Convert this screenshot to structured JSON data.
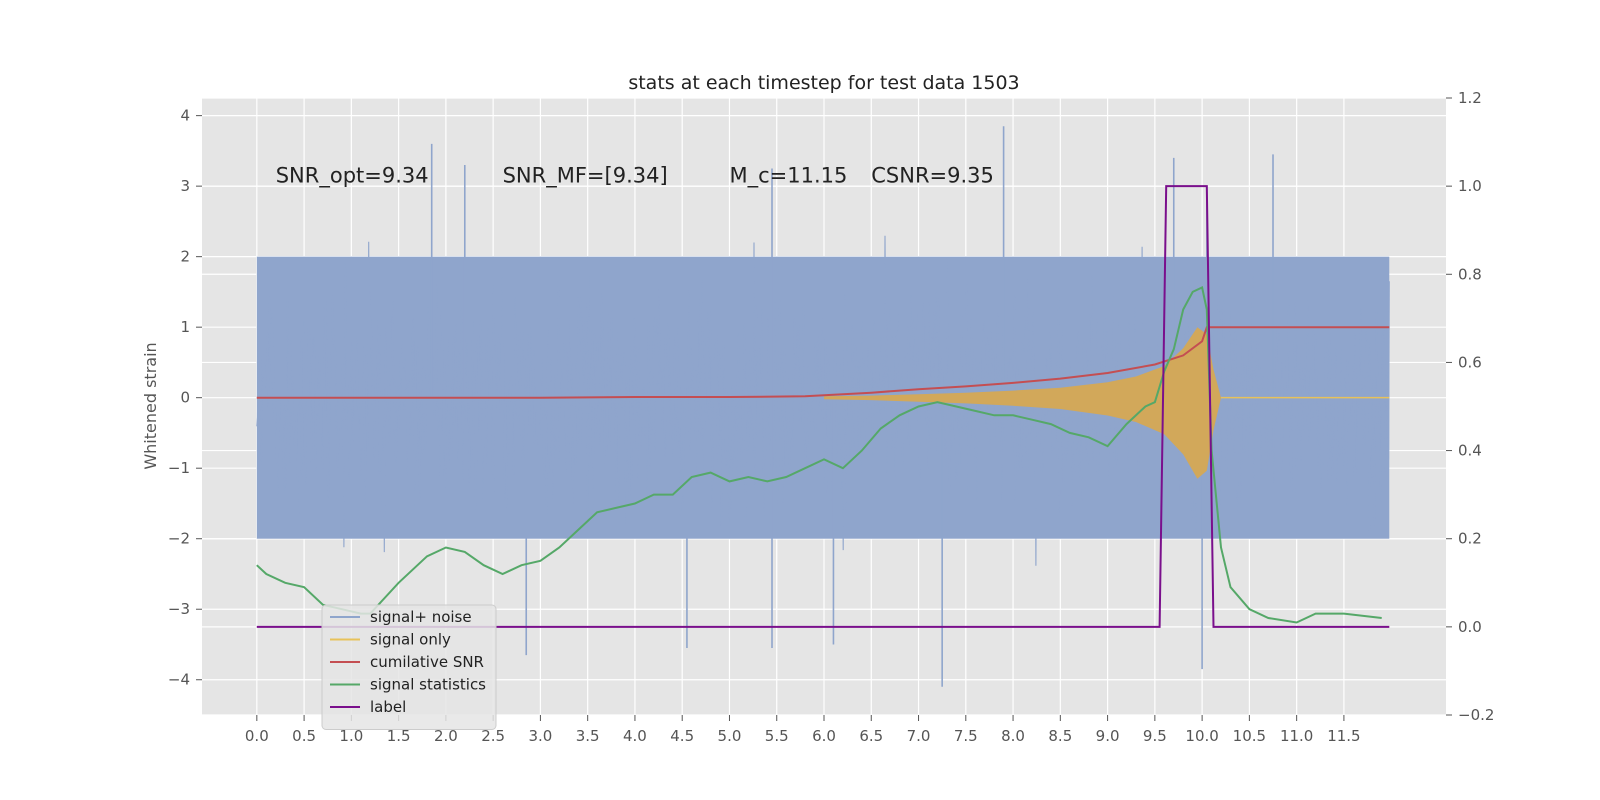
{
  "chart_data": {
    "type": "line",
    "title": "stats at each timestep for test data 1503",
    "ylabel": "Whitened strain",
    "y2label": "",
    "xlim": [
      -0.58,
      12.58
    ],
    "ylim": [
      -4.5,
      4.25
    ],
    "y2lim": [
      -0.2,
      1.2
    ],
    "x_ticks": [
      0.0,
      0.5,
      1.0,
      1.5,
      2.0,
      2.5,
      3.0,
      3.5,
      4.0,
      4.5,
      5.0,
      5.5,
      6.0,
      6.5,
      7.0,
      7.5,
      8.0,
      8.5,
      9.0,
      9.5,
      10.0,
      10.5,
      11.0,
      11.5
    ],
    "x_tick_labels": [
      "0.0",
      "0.5",
      "1.0",
      "1.5",
      "2.0",
      "2.5",
      "3.0",
      "3.5",
      "4.0",
      "4.5",
      "5.0",
      "5.5",
      "6.0",
      "6.5",
      "7.0",
      "7.5",
      "8.0",
      "8.5",
      "9.0",
      "9.5",
      "10.0",
      "10.5",
      "11.0",
      "11.5"
    ],
    "y_ticks": [
      -4,
      -3,
      -2,
      -1,
      0,
      1,
      2,
      3,
      4
    ],
    "y_tick_labels": [
      "−4",
      "−3",
      "−2",
      "−1",
      "0",
      "1",
      "2",
      "3",
      "4"
    ],
    "y2_ticks": [
      -0.2,
      0.0,
      0.2,
      0.4,
      0.6,
      0.8,
      1.0,
      1.2
    ],
    "y2_tick_labels": [
      "−0.2",
      "0.0",
      "0.2",
      "0.4",
      "0.6",
      "0.8",
      "1.0",
      "1.2"
    ],
    "grid": true,
    "legend_position": "lower-left",
    "annotations": [
      {
        "text": "SNR_opt=9.34",
        "x": 0.2,
        "y": 3.05
      },
      {
        "text": "SNR_MF=[9.34]",
        "x": 2.6,
        "y": 3.05
      },
      {
        "text": "M_c=11.15",
        "x": 5.0,
        "y": 3.05
      },
      {
        "text": "CSNR=9.35",
        "x": 6.5,
        "y": 3.05
      }
    ],
    "series": [
      {
        "name": "signal+ noise",
        "color": "#8fa5cc",
        "axis": "left",
        "kind": "noise",
        "x_range": [
          0.0,
          11.98
        ],
        "band_low": -2.0,
        "band_high": 2.0,
        "peaks_high": [
          [
            1.85,
            3.6
          ],
          [
            2.2,
            3.3
          ],
          [
            5.45,
            3.25
          ],
          [
            7.9,
            3.85
          ],
          [
            10.75,
            3.45
          ],
          [
            9.7,
            3.4
          ],
          [
            10.05,
            3.0
          ]
        ],
        "peaks_low": [
          [
            2.85,
            -3.65
          ],
          [
            4.55,
            -3.55
          ],
          [
            5.45,
            -3.55
          ],
          [
            7.25,
            -4.1
          ],
          [
            10.0,
            -3.85
          ],
          [
            6.1,
            -3.5
          ]
        ]
      },
      {
        "name": "signal only",
        "color": "#e8c25a",
        "axis": "left",
        "kind": "chirp",
        "x": [
          6.0,
          6.5,
          7.0,
          7.5,
          8.0,
          8.5,
          9.0,
          9.3,
          9.6,
          9.8,
          9.95,
          10.05,
          10.12,
          10.2,
          11.98
        ],
        "envelope": [
          0.02,
          0.03,
          0.05,
          0.07,
          0.1,
          0.14,
          0.22,
          0.3,
          0.45,
          0.7,
          1.0,
          0.9,
          0.4,
          0.0,
          0.0
        ]
      },
      {
        "name": "cumilative SNR",
        "color": "#c44e52",
        "axis": "left",
        "x": [
          0.0,
          1.0,
          2.0,
          3.0,
          4.0,
          5.0,
          5.8,
          6.5,
          7.0,
          7.5,
          8.0,
          8.5,
          9.0,
          9.5,
          9.8,
          10.0,
          10.05,
          10.5,
          11.0,
          11.5,
          11.98
        ],
        "y": [
          0.0,
          0.0,
          0.0,
          0.0,
          0.01,
          0.01,
          0.02,
          0.07,
          0.12,
          0.16,
          0.21,
          0.27,
          0.35,
          0.47,
          0.6,
          0.8,
          1.0,
          1.0,
          1.0,
          1.0,
          1.0
        ]
      },
      {
        "name": "signal statistics",
        "color": "#55a868",
        "axis": "right",
        "x": [
          0.0,
          0.1,
          0.3,
          0.5,
          0.7,
          0.9,
          1.1,
          1.2,
          1.5,
          1.8,
          2.0,
          2.2,
          2.4,
          2.6,
          2.8,
          3.0,
          3.2,
          3.4,
          3.6,
          3.8,
          4.0,
          4.2,
          4.4,
          4.6,
          4.8,
          5.0,
          5.2,
          5.4,
          5.6,
          5.8,
          6.0,
          6.2,
          6.4,
          6.6,
          6.8,
          7.0,
          7.2,
          7.4,
          7.6,
          7.8,
          8.0,
          8.2,
          8.4,
          8.6,
          8.8,
          9.0,
          9.2,
          9.4,
          9.5,
          9.6,
          9.7,
          9.8,
          9.9,
          10.0,
          10.05,
          10.1,
          10.2,
          10.3,
          10.5,
          10.7,
          11.0,
          11.2,
          11.5,
          11.9
        ],
        "y": [
          0.14,
          0.12,
          0.1,
          0.09,
          0.05,
          0.04,
          0.03,
          0.03,
          0.1,
          0.16,
          0.18,
          0.17,
          0.14,
          0.12,
          0.14,
          0.15,
          0.18,
          0.22,
          0.26,
          0.27,
          0.28,
          0.3,
          0.3,
          0.34,
          0.35,
          0.33,
          0.34,
          0.33,
          0.34,
          0.36,
          0.38,
          0.36,
          0.4,
          0.45,
          0.48,
          0.5,
          0.51,
          0.5,
          0.49,
          0.48,
          0.48,
          0.47,
          0.46,
          0.44,
          0.43,
          0.41,
          0.46,
          0.5,
          0.51,
          0.58,
          0.63,
          0.72,
          0.76,
          0.77,
          0.72,
          0.4,
          0.18,
          0.09,
          0.04,
          0.02,
          0.01,
          0.03,
          0.03,
          0.02
        ]
      },
      {
        "name": "label",
        "color": "#7a0f8c",
        "axis": "right",
        "x": [
          0.0,
          9.55,
          9.62,
          10.05,
          10.12,
          11.98
        ],
        "y": [
          0.0,
          0.0,
          1.0,
          1.0,
          0.0,
          0.0
        ]
      }
    ]
  },
  "legend": {
    "items": [
      {
        "label": "signal+ noise",
        "color": "#8fa5cc"
      },
      {
        "label": "signal only",
        "color": "#e8c25a"
      },
      {
        "label": "cumilative SNR",
        "color": "#c44e52"
      },
      {
        "label": "signal statistics",
        "color": "#55a868"
      },
      {
        "label": "label",
        "color": "#7a0f8c"
      }
    ],
    "ghost_label": "cumilative SNR"
  }
}
